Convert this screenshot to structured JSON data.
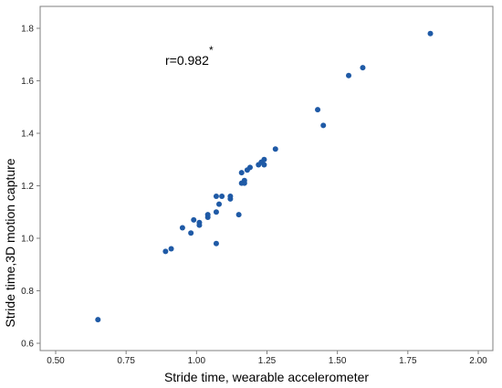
{
  "chart_data": {
    "type": "scatter",
    "title": "",
    "xlabel": "Stride time, wearable accelerometer",
    "ylabel": "Stride time,3D motion capture",
    "xlim": [
      0.5,
      2.0
    ],
    "ylim": [
      0.6,
      1.8
    ],
    "xticks": [
      "0.50",
      "0.75",
      "1.00",
      "1.25",
      "1.50",
      "1.75",
      "2.00"
    ],
    "yticks": [
      "0.6",
      "0.8",
      "1.0",
      "1.2",
      "1.4",
      "1.6",
      "1.8"
    ],
    "grid": false,
    "legend": "none",
    "marker_color": "#1f5aa6",
    "annotation": {
      "text": "r=0.982",
      "superscript": "*"
    },
    "points": [
      {
        "x": 0.65,
        "y": 0.69
      },
      {
        "x": 0.89,
        "y": 0.95
      },
      {
        "x": 0.91,
        "y": 0.96
      },
      {
        "x": 0.95,
        "y": 1.04
      },
      {
        "x": 0.98,
        "y": 1.02
      },
      {
        "x": 0.99,
        "y": 1.07
      },
      {
        "x": 1.01,
        "y": 1.05
      },
      {
        "x": 1.01,
        "y": 1.06
      },
      {
        "x": 1.04,
        "y": 1.08
      },
      {
        "x": 1.04,
        "y": 1.09
      },
      {
        "x": 1.07,
        "y": 1.1
      },
      {
        "x": 1.07,
        "y": 0.98
      },
      {
        "x": 1.07,
        "y": 1.16
      },
      {
        "x": 1.08,
        "y": 1.13
      },
      {
        "x": 1.09,
        "y": 1.16
      },
      {
        "x": 1.12,
        "y": 1.15
      },
      {
        "x": 1.12,
        "y": 1.16
      },
      {
        "x": 1.15,
        "y": 1.09
      },
      {
        "x": 1.16,
        "y": 1.21
      },
      {
        "x": 1.16,
        "y": 1.25
      },
      {
        "x": 1.17,
        "y": 1.21
      },
      {
        "x": 1.17,
        "y": 1.22
      },
      {
        "x": 1.18,
        "y": 1.26
      },
      {
        "x": 1.19,
        "y": 1.27
      },
      {
        "x": 1.22,
        "y": 1.28
      },
      {
        "x": 1.23,
        "y": 1.29
      },
      {
        "x": 1.24,
        "y": 1.28
      },
      {
        "x": 1.24,
        "y": 1.3
      },
      {
        "x": 1.28,
        "y": 1.34
      },
      {
        "x": 1.43,
        "y": 1.49
      },
      {
        "x": 1.45,
        "y": 1.43
      },
      {
        "x": 1.54,
        "y": 1.62
      },
      {
        "x": 1.59,
        "y": 1.65
      },
      {
        "x": 1.83,
        "y": 1.78
      }
    ]
  }
}
